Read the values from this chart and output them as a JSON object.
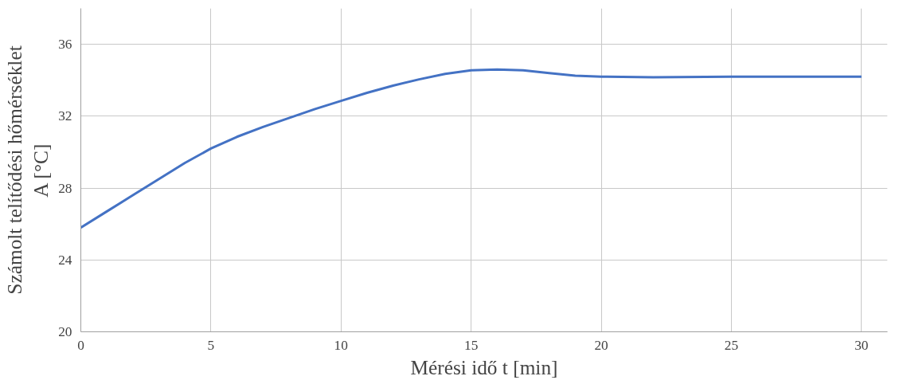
{
  "chart_data": {
    "type": "line",
    "xlabel": "Mérési idő t [min]",
    "ylabel": "Számolt telítődési hőmérséklet\nA [°C]",
    "x": [
      0,
      1,
      2,
      3,
      4,
      5,
      6,
      7,
      8,
      9,
      10,
      11,
      12,
      13,
      14,
      15,
      16,
      17,
      18,
      19,
      20,
      22,
      25,
      30
    ],
    "series": [
      {
        "color": "#4472c4",
        "values": [
          25.8,
          26.7,
          27.6,
          28.5,
          29.4,
          30.2,
          30.85,
          31.4,
          31.9,
          32.4,
          32.85,
          33.3,
          33.7,
          34.05,
          34.35,
          34.55,
          34.6,
          34.55,
          34.4,
          34.25,
          34.2,
          34.17,
          34.2,
          34.2
        ]
      }
    ],
    "xlim": [
      0,
      31
    ],
    "ylim": [
      20,
      38
    ],
    "xticks": [
      0,
      5,
      10,
      15,
      20,
      25,
      30
    ],
    "yticks": [
      20,
      24,
      28,
      32,
      36
    ],
    "grid": true,
    "marker": "none",
    "line_style": "solid"
  }
}
